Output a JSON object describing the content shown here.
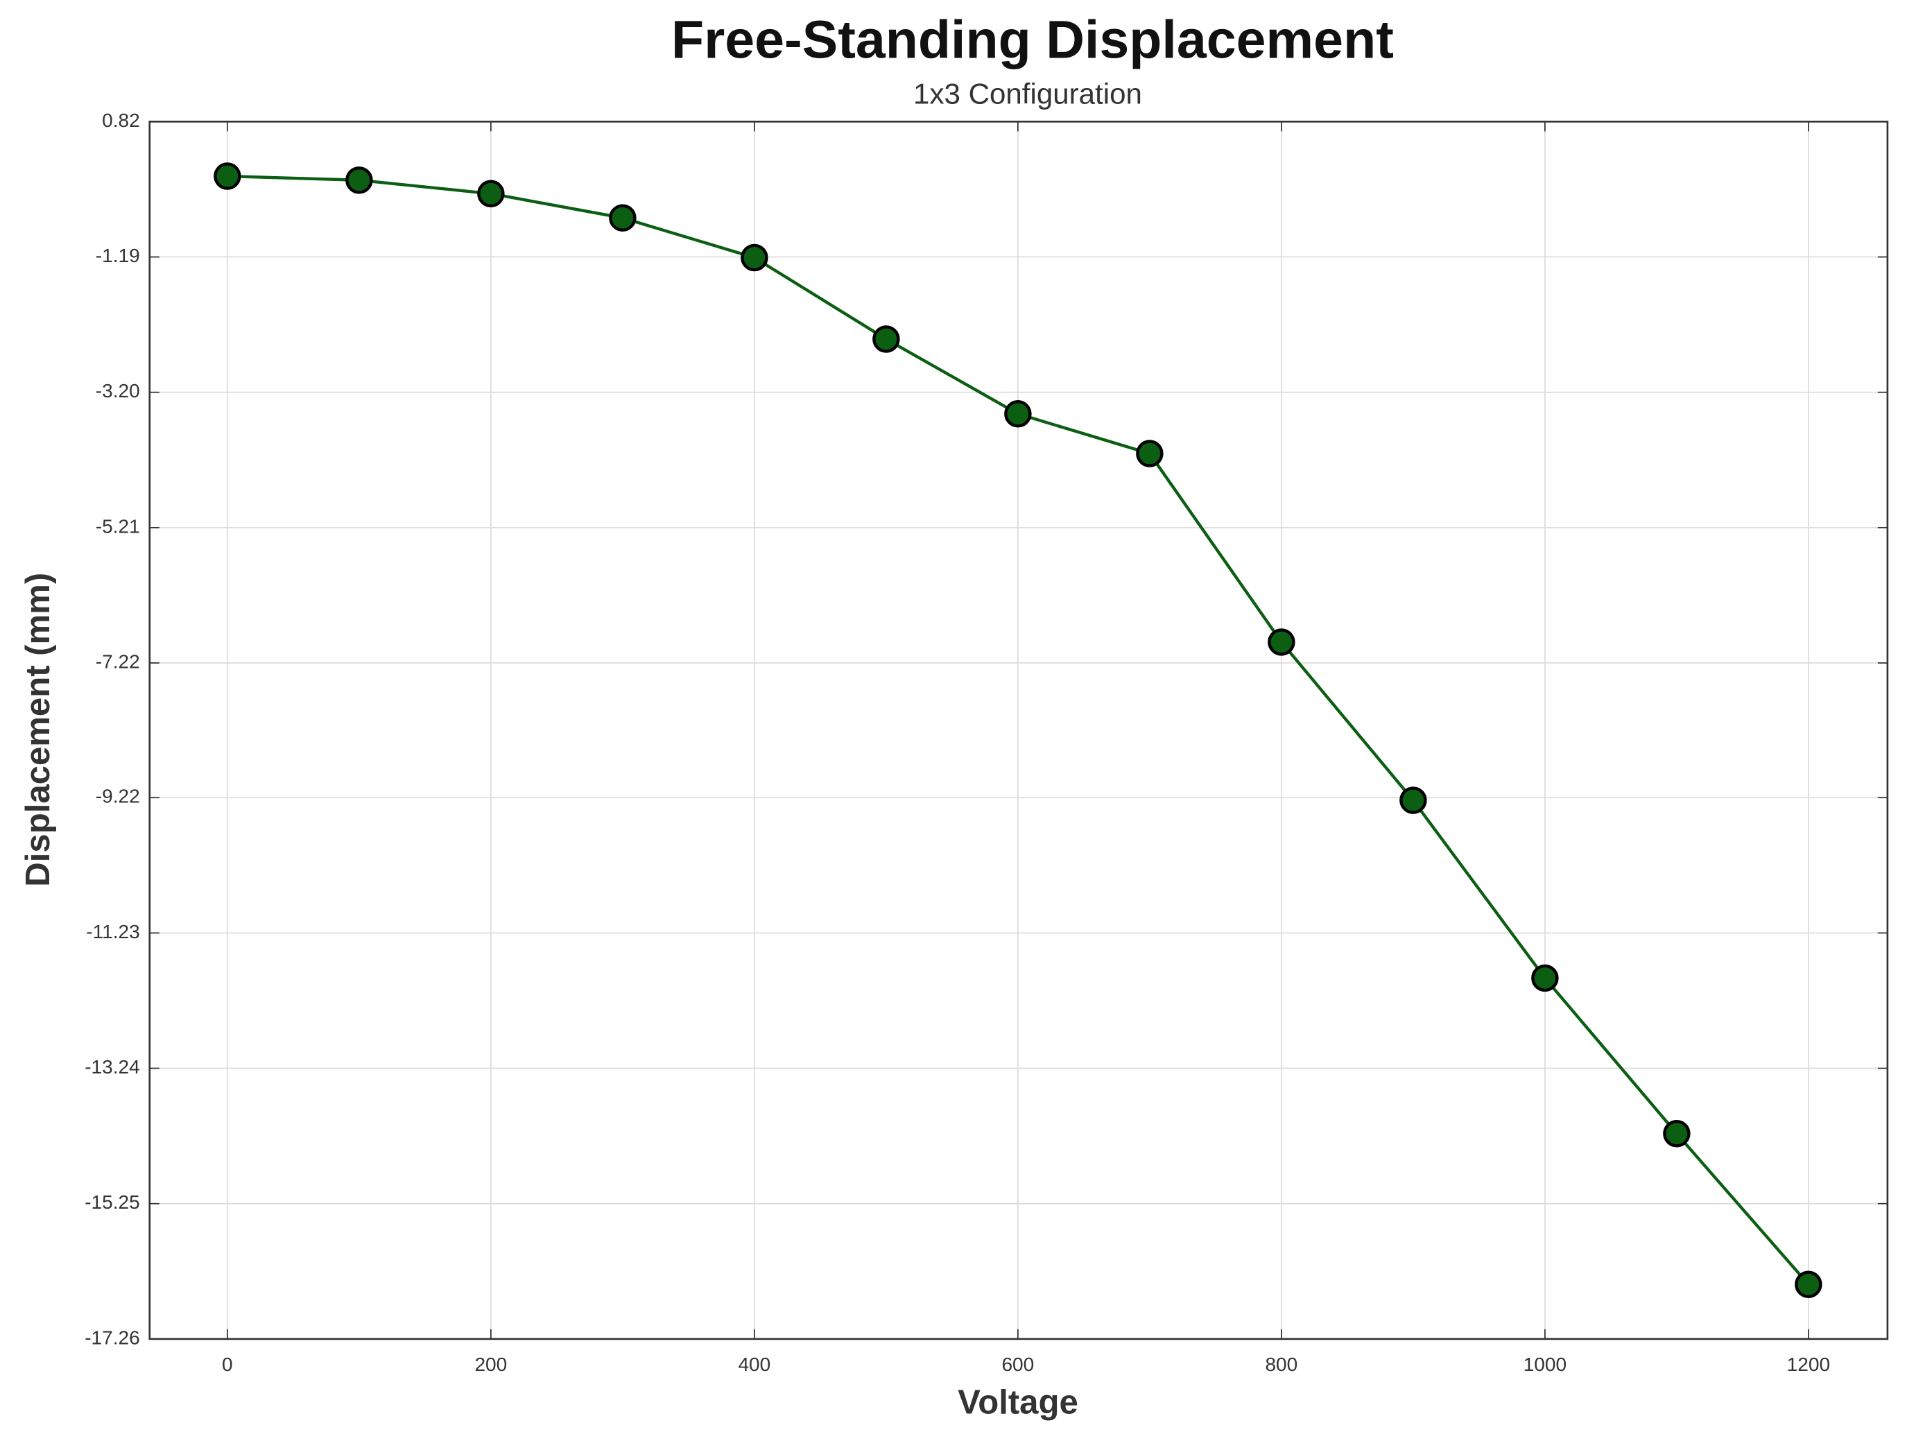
{
  "chart_data": {
    "type": "line",
    "title": "Free-Standing  Displacement",
    "subtitle": "1x3  Configuration",
    "x_label": "Voltage",
    "y_label": "Displacement (mm)",
    "x": [
      0,
      100,
      200,
      300,
      400,
      500,
      600,
      700,
      800,
      900,
      1000,
      1100,
      1200
    ],
    "series": [
      {
        "color": "#0b5e12",
        "values": [
          0.01,
          -0.05,
          -0.25,
          -0.61,
          -1.2,
          -2.41,
          -3.52,
          -4.11,
          -6.91,
          -9.26,
          -11.9,
          -14.21,
          -16.45
        ]
      }
    ],
    "xlim": [
      -59,
      1260
    ],
    "xticks": [
      0,
      200,
      400,
      600,
      800,
      1000,
      1200
    ],
    "ylim": [
      -17.26,
      0.82
    ],
    "yticks": [
      -17.26,
      -15.25,
      -13.24,
      -11.23,
      -9.22,
      -7.22,
      -5.21,
      {
        "value": -3.2,
        "label": "-3.20"
      },
      -1.19,
      0.82
    ],
    "grid": true
  }
}
